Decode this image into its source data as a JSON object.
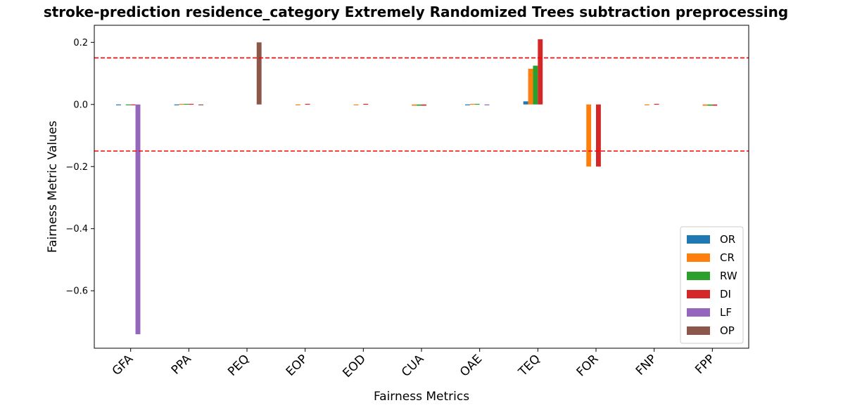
{
  "chart_data": {
    "type": "bar",
    "title": "stroke-prediction residence_category Extremely Randomized Trees subtraction preprocessing",
    "xlabel": "Fairness Metrics",
    "ylabel": "Fairness Metric Values",
    "categories": [
      "GFA",
      "PPA",
      "PEQ",
      "EOP",
      "EOD",
      "CUA",
      "OAE",
      "TEQ",
      "FOR",
      "FNP",
      "FPP"
    ],
    "ylim": [
      -0.785,
      0.255
    ],
    "yticks": [
      -0.6,
      -0.4,
      -0.2,
      0.0,
      0.2
    ],
    "ytick_labels": [
      "−0.6",
      "−0.4",
      "−0.2",
      "0.0",
      "0.2"
    ],
    "thresholds": [
      0.15,
      -0.15
    ],
    "threshold_color": "#ff0000",
    "legend_position": "lower-right",
    "grid": false,
    "series": [
      {
        "name": "OR",
        "color": "#1f77b4",
        "values": [
          -0.002,
          -0.002,
          0.0,
          0.0,
          0.0,
          0.0,
          -0.002,
          0.01,
          0.0,
          0.0,
          0.0
        ]
      },
      {
        "name": "CR",
        "color": "#ff7f0e",
        "values": [
          0.0,
          0.002,
          0.0,
          -0.002,
          -0.002,
          -0.004,
          0.002,
          0.115,
          -0.2,
          -0.002,
          -0.004
        ]
      },
      {
        "name": "RW",
        "color": "#2ca02c",
        "values": [
          -0.002,
          0.002,
          0.0,
          0.0,
          0.0,
          -0.004,
          0.002,
          0.125,
          0.0,
          0.0,
          -0.004
        ]
      },
      {
        "name": "DI",
        "color": "#d62728",
        "values": [
          -0.002,
          0.002,
          0.0,
          0.002,
          0.002,
          -0.004,
          0.0,
          0.21,
          -0.2,
          0.002,
          -0.004
        ]
      },
      {
        "name": "LF",
        "color": "#9467bd",
        "values": [
          -0.74,
          0.0,
          0.0,
          0.0,
          0.0,
          0.0,
          -0.002,
          0.0,
          0.0,
          0.0,
          0.0
        ]
      },
      {
        "name": "OP",
        "color": "#8c564b",
        "values": [
          0.0,
          -0.002,
          0.2,
          0.0,
          0.0,
          0.0,
          0.0,
          0.0,
          0.0,
          0.0,
          0.0
        ]
      }
    ]
  }
}
